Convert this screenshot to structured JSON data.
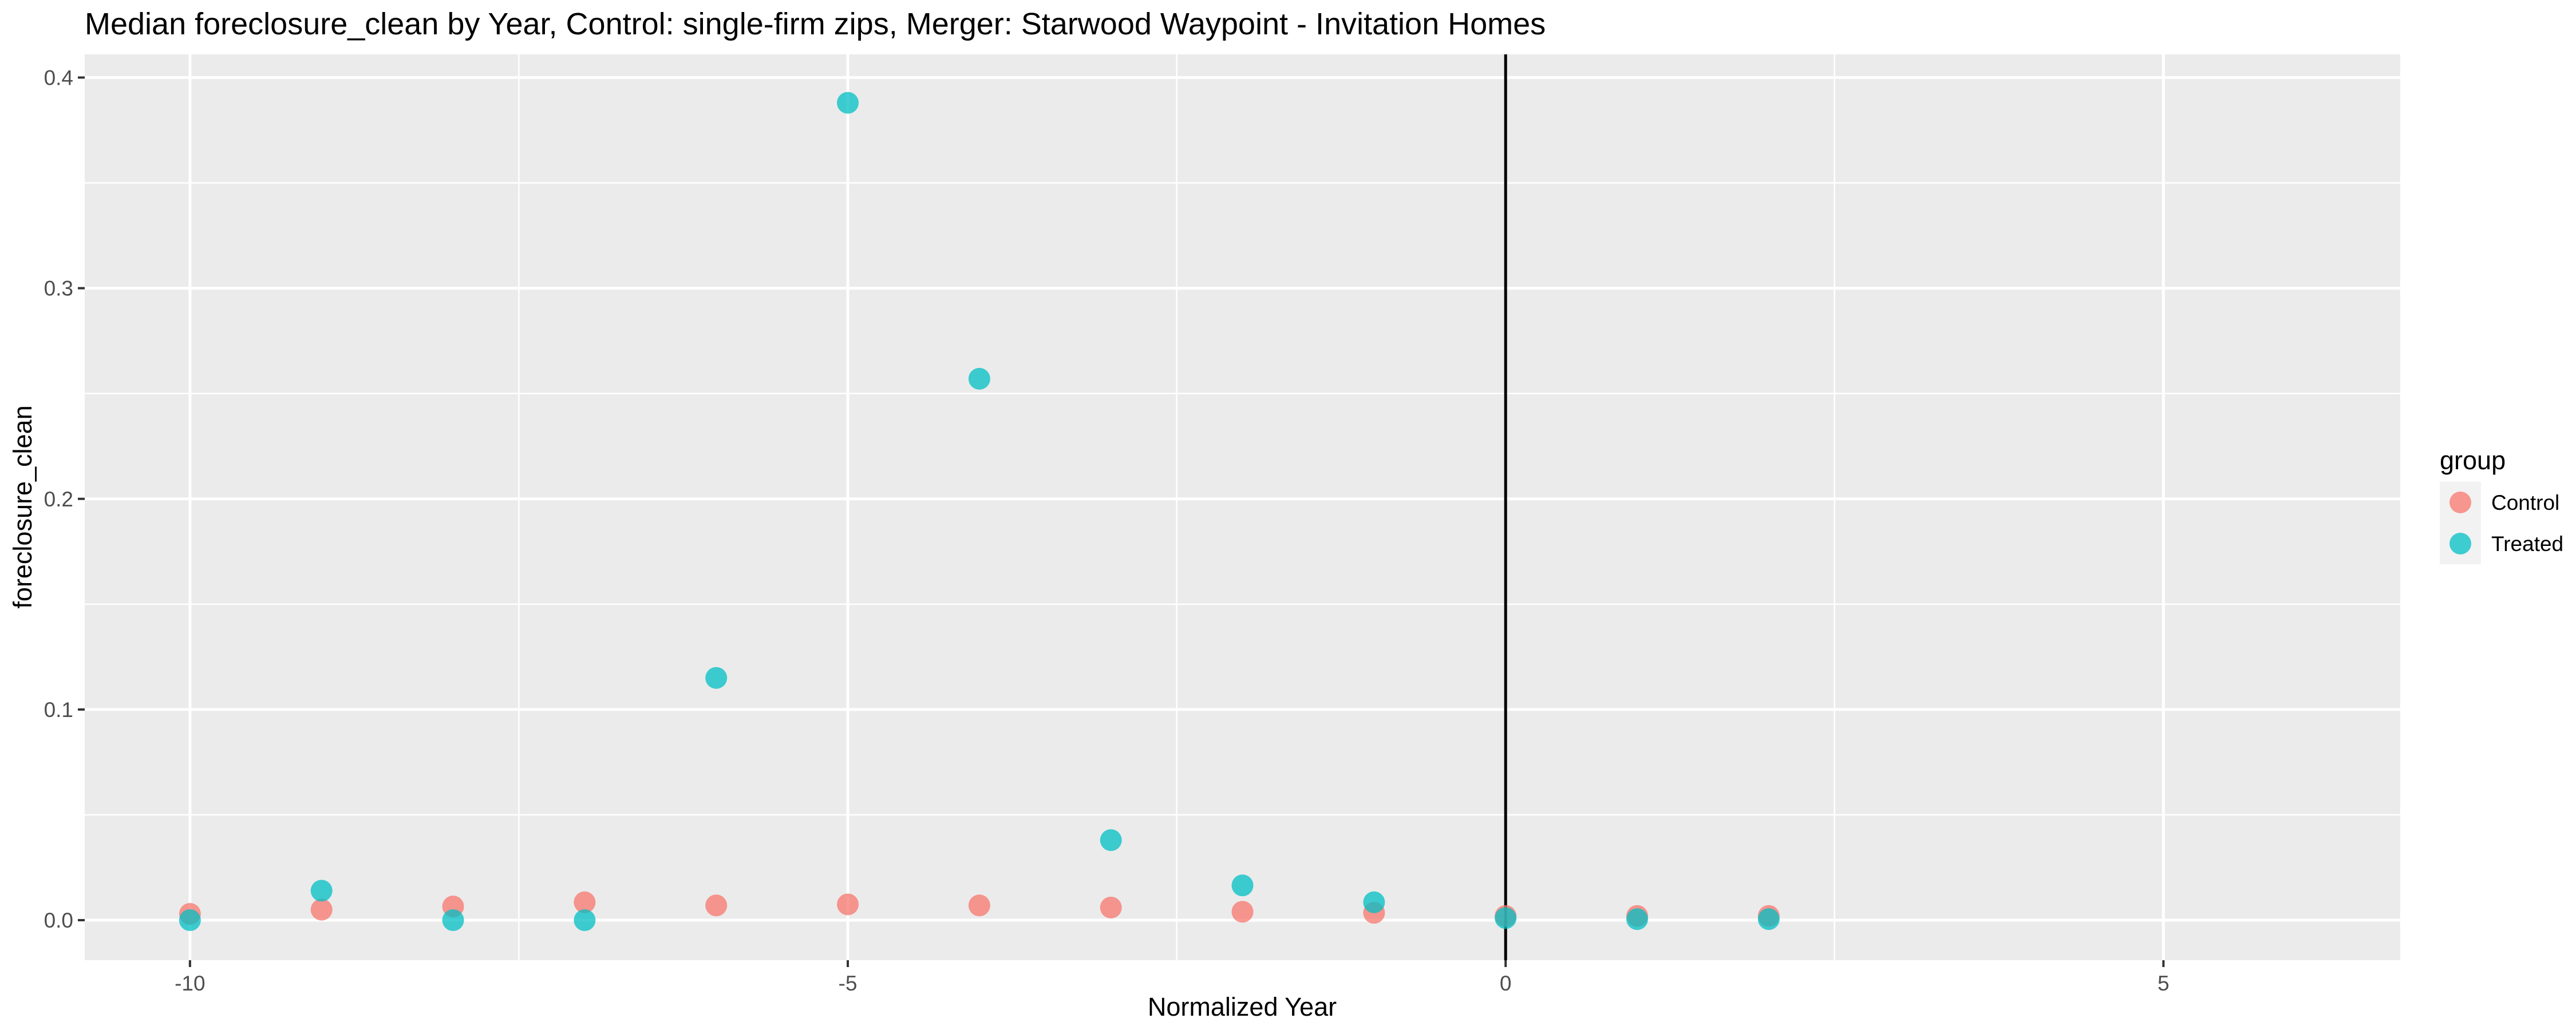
{
  "chart_data": {
    "type": "scatter",
    "title": "Median foreclosure_clean by Year, Control: single-firm zips, Merger: Starwood Waypoint - Invitation Homes",
    "xlabel": "Normalized Year",
    "ylabel": "foreclosure_clean",
    "xlim": [
      -10.8,
      6.8
    ],
    "ylim": [
      -0.019,
      0.411
    ],
    "x_ticks": [
      -10,
      -5,
      0,
      5
    ],
    "x_tick_labels": [
      "-10",
      "-5",
      "0",
      "5"
    ],
    "y_ticks": [
      0.0,
      0.1,
      0.2,
      0.3,
      0.4
    ],
    "y_tick_labels": [
      "0.0",
      "0.1",
      "0.2",
      "0.3",
      "0.4"
    ],
    "grid": true,
    "vline_x": 0,
    "legend": {
      "title": "group",
      "position": "right",
      "entries": [
        "Control",
        "Treated"
      ]
    },
    "series": [
      {
        "name": "Control",
        "color": "#F8766D",
        "x": [
          -10,
          -9,
          -8,
          -7,
          -6,
          -5,
          -4,
          -3,
          -2,
          -1,
          0,
          1,
          2
        ],
        "y": [
          0.003,
          0.005,
          0.0065,
          0.0085,
          0.007,
          0.0075,
          0.007,
          0.006,
          0.004,
          0.0035,
          0.002,
          0.002,
          0.002
        ]
      },
      {
        "name": "Treated",
        "color": "#00BFC4",
        "x": [
          -10,
          -9,
          -8,
          -7,
          -6,
          -5,
          -4,
          -3,
          -2,
          -1,
          0,
          1,
          2
        ],
        "y": [
          0.0,
          0.014,
          0.0,
          0.0,
          0.115,
          0.388,
          0.257,
          0.038,
          0.0165,
          0.0085,
          0.001,
          0.0005,
          0.0005
        ]
      }
    ]
  }
}
